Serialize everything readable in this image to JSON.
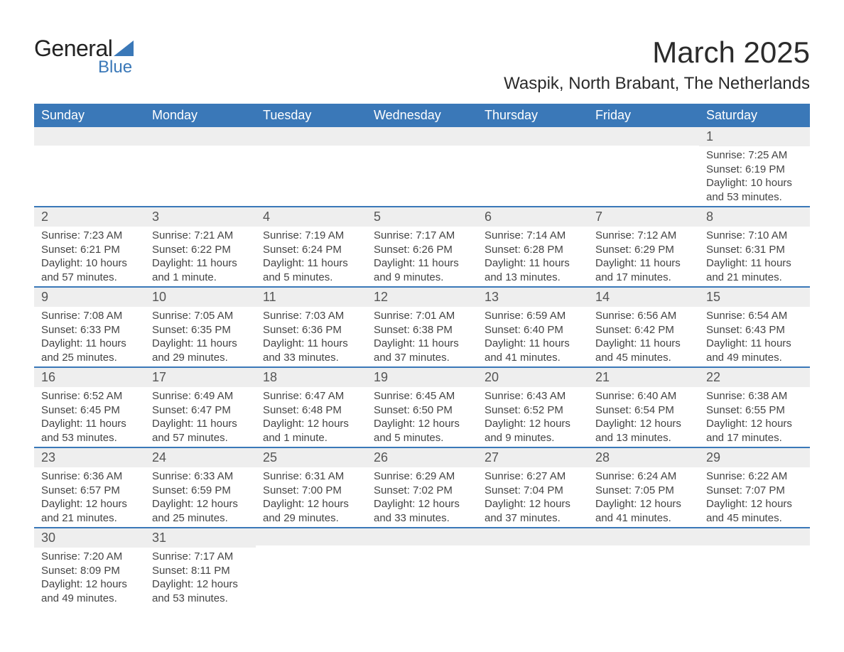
{
  "logo": {
    "text1": "General",
    "text2": "Blue",
    "triangle_color": "#3a78b8"
  },
  "title": "March 2025",
  "location": "Waspik, North Brabant, The Netherlands",
  "colors": {
    "header_bg": "#3a78b8",
    "header_fg": "#ffffff",
    "daynum_bg": "#eeeeee",
    "border": "#3a78b8"
  },
  "day_headers": [
    "Sunday",
    "Monday",
    "Tuesday",
    "Wednesday",
    "Thursday",
    "Friday",
    "Saturday"
  ],
  "weeks": [
    [
      null,
      null,
      null,
      null,
      null,
      null,
      {
        "n": "1",
        "sr": "7:25 AM",
        "ss": "6:19 PM",
        "dl": "10 hours and 53 minutes."
      }
    ],
    [
      {
        "n": "2",
        "sr": "7:23 AM",
        "ss": "6:21 PM",
        "dl": "10 hours and 57 minutes."
      },
      {
        "n": "3",
        "sr": "7:21 AM",
        "ss": "6:22 PM",
        "dl": "11 hours and 1 minute."
      },
      {
        "n": "4",
        "sr": "7:19 AM",
        "ss": "6:24 PM",
        "dl": "11 hours and 5 minutes."
      },
      {
        "n": "5",
        "sr": "7:17 AM",
        "ss": "6:26 PM",
        "dl": "11 hours and 9 minutes."
      },
      {
        "n": "6",
        "sr": "7:14 AM",
        "ss": "6:28 PM",
        "dl": "11 hours and 13 minutes."
      },
      {
        "n": "7",
        "sr": "7:12 AM",
        "ss": "6:29 PM",
        "dl": "11 hours and 17 minutes."
      },
      {
        "n": "8",
        "sr": "7:10 AM",
        "ss": "6:31 PM",
        "dl": "11 hours and 21 minutes."
      }
    ],
    [
      {
        "n": "9",
        "sr": "7:08 AM",
        "ss": "6:33 PM",
        "dl": "11 hours and 25 minutes."
      },
      {
        "n": "10",
        "sr": "7:05 AM",
        "ss": "6:35 PM",
        "dl": "11 hours and 29 minutes."
      },
      {
        "n": "11",
        "sr": "7:03 AM",
        "ss": "6:36 PM",
        "dl": "11 hours and 33 minutes."
      },
      {
        "n": "12",
        "sr": "7:01 AM",
        "ss": "6:38 PM",
        "dl": "11 hours and 37 minutes."
      },
      {
        "n": "13",
        "sr": "6:59 AM",
        "ss": "6:40 PM",
        "dl": "11 hours and 41 minutes."
      },
      {
        "n": "14",
        "sr": "6:56 AM",
        "ss": "6:42 PM",
        "dl": "11 hours and 45 minutes."
      },
      {
        "n": "15",
        "sr": "6:54 AM",
        "ss": "6:43 PM",
        "dl": "11 hours and 49 minutes."
      }
    ],
    [
      {
        "n": "16",
        "sr": "6:52 AM",
        "ss": "6:45 PM",
        "dl": "11 hours and 53 minutes."
      },
      {
        "n": "17",
        "sr": "6:49 AM",
        "ss": "6:47 PM",
        "dl": "11 hours and 57 minutes."
      },
      {
        "n": "18",
        "sr": "6:47 AM",
        "ss": "6:48 PM",
        "dl": "12 hours and 1 minute."
      },
      {
        "n": "19",
        "sr": "6:45 AM",
        "ss": "6:50 PM",
        "dl": "12 hours and 5 minutes."
      },
      {
        "n": "20",
        "sr": "6:43 AM",
        "ss": "6:52 PM",
        "dl": "12 hours and 9 minutes."
      },
      {
        "n": "21",
        "sr": "6:40 AM",
        "ss": "6:54 PM",
        "dl": "12 hours and 13 minutes."
      },
      {
        "n": "22",
        "sr": "6:38 AM",
        "ss": "6:55 PM",
        "dl": "12 hours and 17 minutes."
      }
    ],
    [
      {
        "n": "23",
        "sr": "6:36 AM",
        "ss": "6:57 PM",
        "dl": "12 hours and 21 minutes."
      },
      {
        "n": "24",
        "sr": "6:33 AM",
        "ss": "6:59 PM",
        "dl": "12 hours and 25 minutes."
      },
      {
        "n": "25",
        "sr": "6:31 AM",
        "ss": "7:00 PM",
        "dl": "12 hours and 29 minutes."
      },
      {
        "n": "26",
        "sr": "6:29 AM",
        "ss": "7:02 PM",
        "dl": "12 hours and 33 minutes."
      },
      {
        "n": "27",
        "sr": "6:27 AM",
        "ss": "7:04 PM",
        "dl": "12 hours and 37 minutes."
      },
      {
        "n": "28",
        "sr": "6:24 AM",
        "ss": "7:05 PM",
        "dl": "12 hours and 41 minutes."
      },
      {
        "n": "29",
        "sr": "6:22 AM",
        "ss": "7:07 PM",
        "dl": "12 hours and 45 minutes."
      }
    ],
    [
      {
        "n": "30",
        "sr": "7:20 AM",
        "ss": "8:09 PM",
        "dl": "12 hours and 49 minutes."
      },
      {
        "n": "31",
        "sr": "7:17 AM",
        "ss": "8:11 PM",
        "dl": "12 hours and 53 minutes."
      },
      null,
      null,
      null,
      null,
      null
    ]
  ],
  "labels": {
    "sunrise": "Sunrise: ",
    "sunset": "Sunset: ",
    "daylight": "Daylight: "
  }
}
